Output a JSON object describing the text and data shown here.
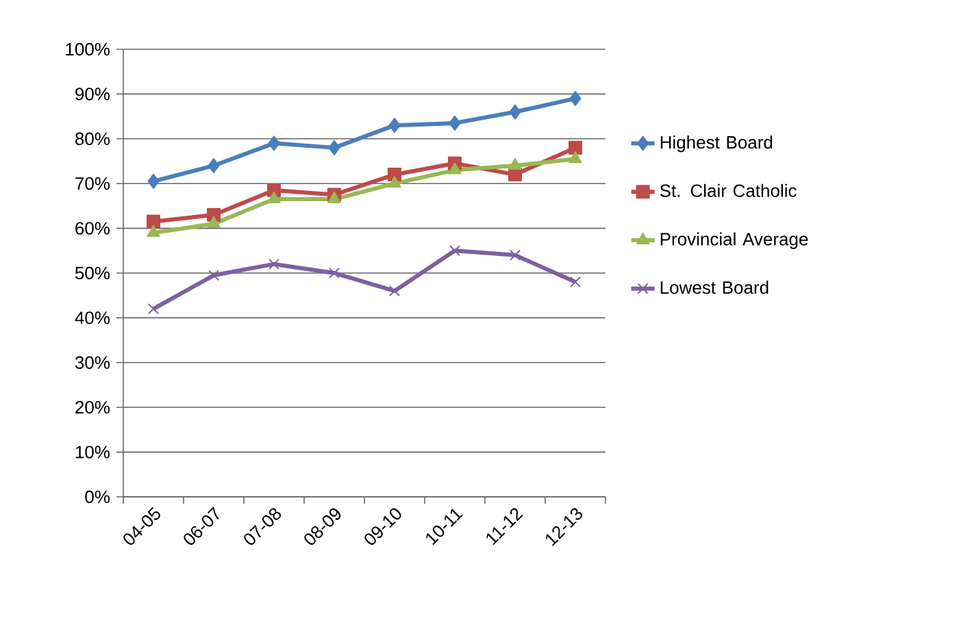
{
  "chart_data": {
    "type": "line",
    "categories": [
      "04-05",
      "06-07",
      "07-08",
      "08-09",
      "09-10",
      "10-11",
      "11-12",
      "12-13"
    ],
    "series": [
      {
        "name": "Highest Board",
        "color": "#4a7ebb",
        "marker": "diamond",
        "values": [
          70.5,
          74,
          79,
          78,
          83,
          83.5,
          86,
          89
        ]
      },
      {
        "name": "St. Clair Catholic",
        "color": "#be4b48",
        "marker": "square",
        "values": [
          61.5,
          63,
          68.5,
          67.5,
          72,
          74.5,
          72,
          78
        ]
      },
      {
        "name": "Provincial Average",
        "color": "#98b954",
        "marker": "triangle",
        "values": [
          59,
          61,
          66.5,
          66.5,
          70,
          73,
          74,
          75.5
        ]
      },
      {
        "name": "Lowest Board",
        "color": "#7d60a0",
        "marker": "cross",
        "values": [
          42,
          49.5,
          52,
          50,
          46,
          55,
          54,
          48
        ]
      }
    ],
    "ylim": [
      0,
      100
    ],
    "yticks": [
      {
        "value": 0,
        "label": "0%"
      },
      {
        "value": 10,
        "label": "10%"
      },
      {
        "value": 20,
        "label": "20%"
      },
      {
        "value": 30,
        "label": "30%"
      },
      {
        "value": 40,
        "label": "40%"
      },
      {
        "value": 50,
        "label": "50%"
      },
      {
        "value": 60,
        "label": "60%"
      },
      {
        "value": 70,
        "label": "70%"
      },
      {
        "value": 80,
        "label": "80%"
      },
      {
        "value": 90,
        "label": "90%"
      },
      {
        "value": 100,
        "label": "100%"
      }
    ],
    "grid": "y",
    "legend": "right",
    "line_style": "solid"
  }
}
